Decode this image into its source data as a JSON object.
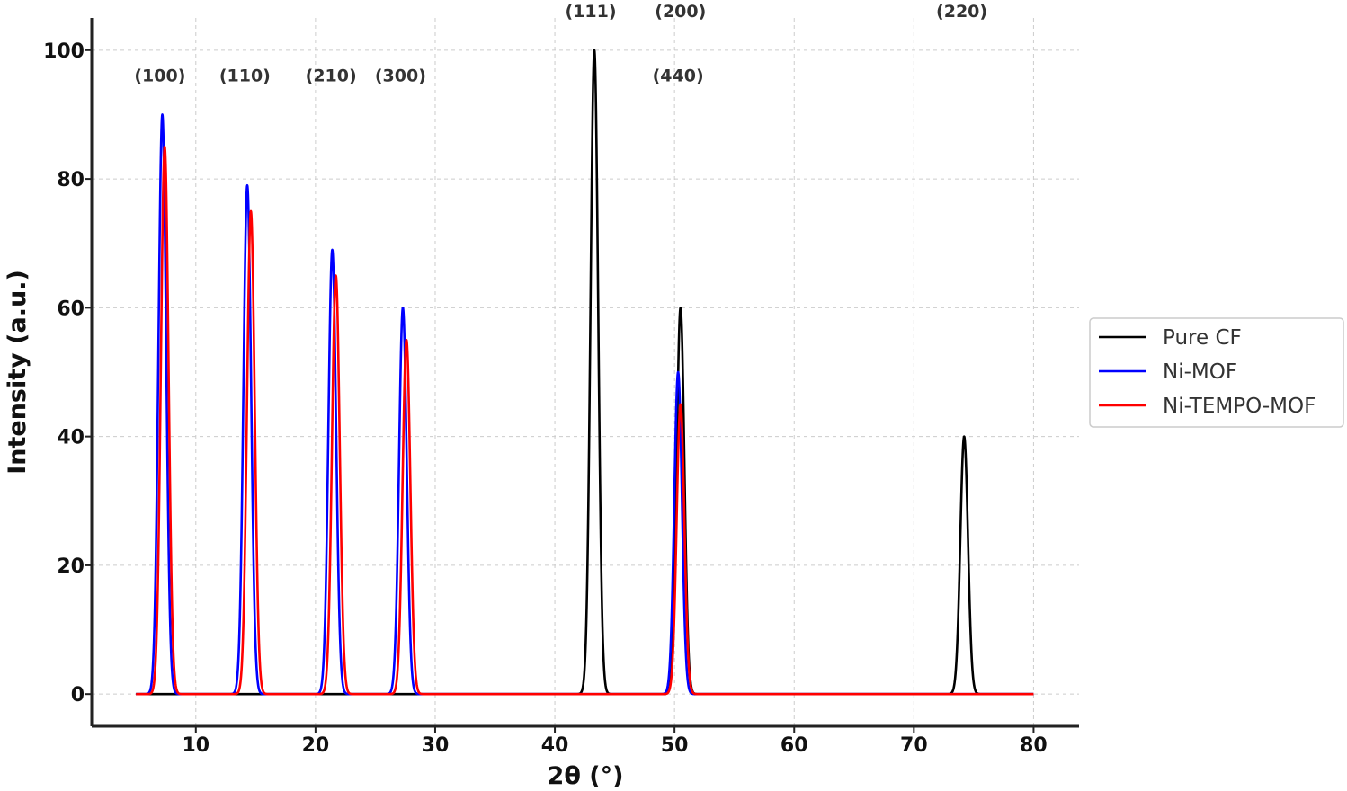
{
  "chart_data": {
    "type": "line",
    "title": "",
    "xlabel": "2θ (°)",
    "ylabel": "Intensity (a.u.)",
    "xlim": [
      1.3,
      83.8
    ],
    "ylim": [
      -5,
      105
    ],
    "x_ticks": [
      10,
      20,
      30,
      40,
      50,
      60,
      70,
      80
    ],
    "y_ticks": [
      0,
      20,
      40,
      60,
      80,
      100
    ],
    "grid": true,
    "legend_position": "right",
    "x_range": [
      5,
      80
    ],
    "series": [
      {
        "name": "Pure CF",
        "color": "#000000",
        "peaks": [
          {
            "x": 43.3,
            "y": 100
          },
          {
            "x": 50.5,
            "y": 60
          },
          {
            "x": 74.2,
            "y": 40
          }
        ]
      },
      {
        "name": "Ni-MOF",
        "color": "#0000ff",
        "peaks": [
          {
            "x": 7.2,
            "y": 90
          },
          {
            "x": 14.3,
            "y": 79
          },
          {
            "x": 21.4,
            "y": 69
          },
          {
            "x": 27.3,
            "y": 60
          },
          {
            "x": 50.3,
            "y": 50
          }
        ]
      },
      {
        "name": "Ni-TEMPO-MOF",
        "color": "#ff0000",
        "peaks": [
          {
            "x": 7.4,
            "y": 85
          },
          {
            "x": 14.6,
            "y": 75
          },
          {
            "x": 21.7,
            "y": 65
          },
          {
            "x": 27.6,
            "y": 55
          },
          {
            "x": 50.5,
            "y": 45
          }
        ]
      }
    ],
    "annotations": [
      {
        "text": "(100)",
        "x": 7.0,
        "y": 96
      },
      {
        "text": "(110)",
        "x": 14.1,
        "y": 96
      },
      {
        "text": "(210)",
        "x": 21.3,
        "y": 96
      },
      {
        "text": "(300)",
        "x": 27.1,
        "y": 96
      },
      {
        "text": "(111)",
        "x": 43.0,
        "y": 106
      },
      {
        "text": "(200)",
        "x": 50.5,
        "y": 106
      },
      {
        "text": "(440)",
        "x": 50.3,
        "y": 96
      },
      {
        "text": "(220)",
        "x": 74.0,
        "y": 106
      }
    ]
  }
}
